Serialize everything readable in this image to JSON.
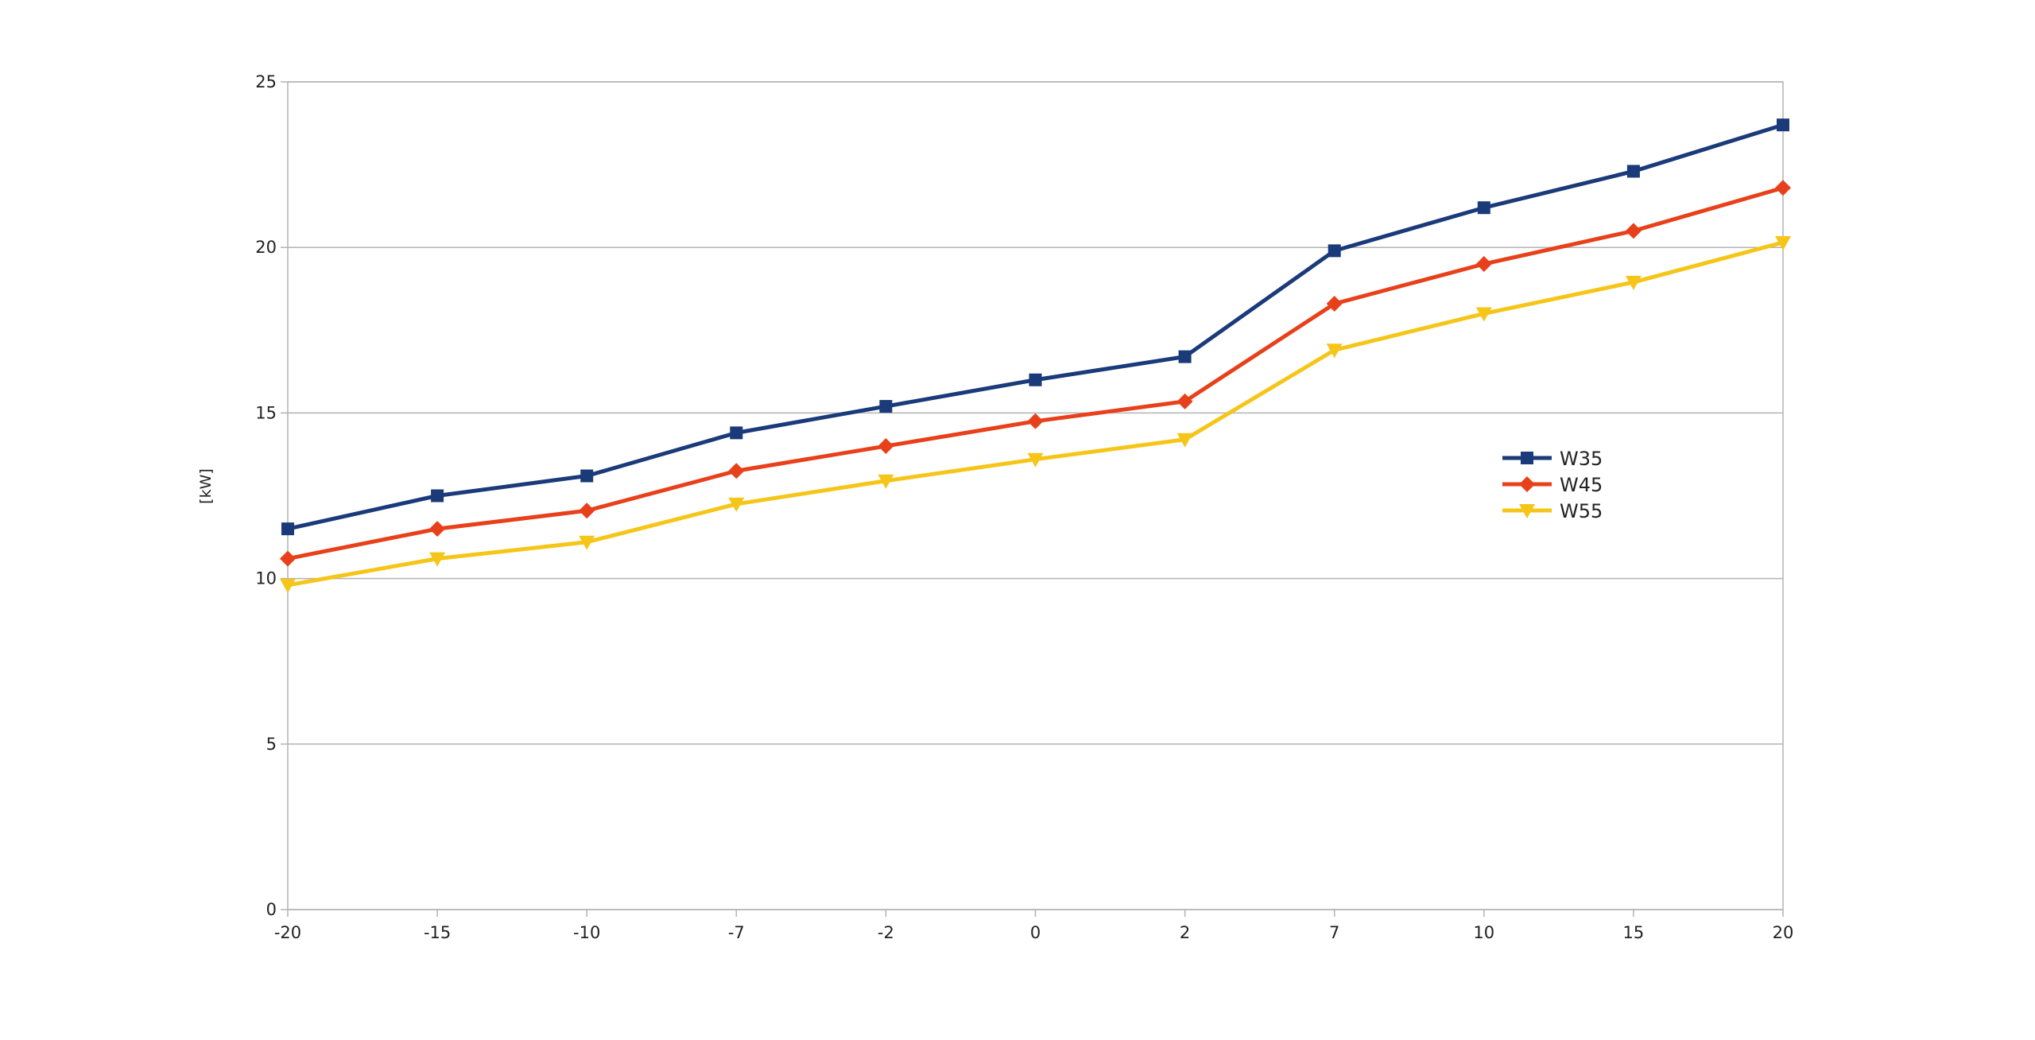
{
  "chart_data": {
    "type": "line",
    "title": "",
    "xlabel": "",
    "ylabel": "[kW]",
    "categories": [
      "-20",
      "-15",
      "-10",
      "-7",
      "-2",
      "0",
      "2",
      "7",
      "10",
      "15",
      "20"
    ],
    "ylim": [
      0,
      25
    ],
    "yticks": [
      0,
      5,
      10,
      15,
      20,
      25
    ],
    "grid": "horizontal",
    "legend_position": "right",
    "series": [
      {
        "name": "W35",
        "color": "#1a3a7a",
        "marker": "square",
        "values": [
          11.5,
          12.5,
          13.1,
          14.4,
          15.2,
          16.0,
          16.7,
          19.9,
          21.2,
          22.3,
          23.7
        ]
      },
      {
        "name": "W45",
        "color": "#e8401a",
        "marker": "diamond",
        "values": [
          10.6,
          11.5,
          12.05,
          13.25,
          14.0,
          14.75,
          15.35,
          18.3,
          19.5,
          20.5,
          21.8
        ]
      },
      {
        "name": "W55",
        "color": "#f5c518",
        "marker": "triangle-down",
        "values": [
          9.8,
          10.6,
          11.1,
          12.25,
          12.95,
          13.6,
          14.2,
          16.9,
          18.0,
          18.95,
          20.15
        ]
      }
    ]
  }
}
